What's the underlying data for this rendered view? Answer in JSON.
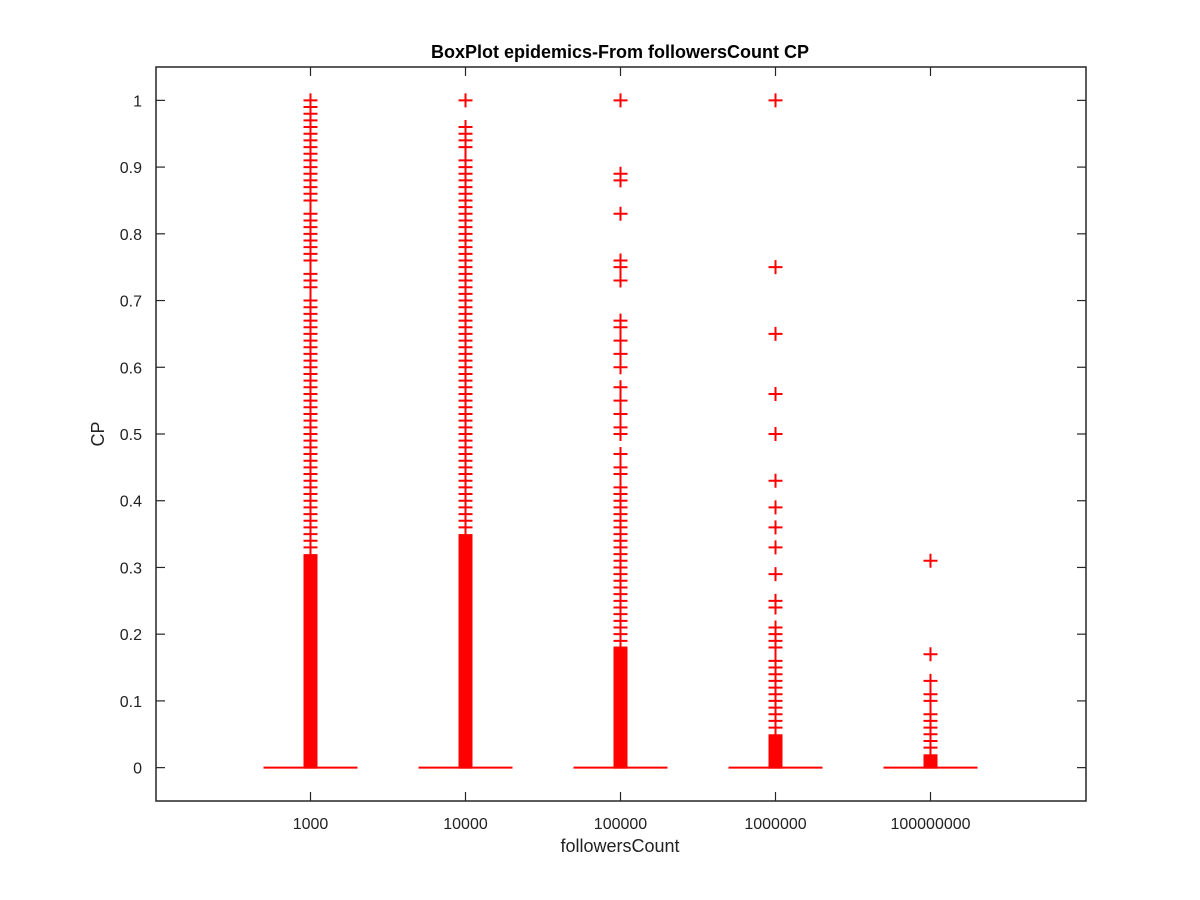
{
  "chart_data": {
    "type": "boxplot",
    "title": "BoxPlot epidemics-From followersCount CP",
    "xlabel": "followersCount",
    "ylabel": "CP",
    "ylim": [
      -0.05,
      1.05
    ],
    "yticks": [
      0,
      0.1,
      0.2,
      0.3,
      0.4,
      0.5,
      0.6,
      0.7,
      0.8,
      0.9,
      1
    ],
    "ytick_labels": [
      "0",
      "0.1",
      "0.2",
      "0.3",
      "0.4",
      "0.5",
      "0.6",
      "0.7",
      "0.8",
      "0.9",
      "1"
    ],
    "categories": [
      "1000",
      "10000",
      "100000",
      "1000000",
      "100000000"
    ],
    "colors": {
      "outlier": "#ff0000",
      "median": "#ff0000",
      "axis": "#262626"
    },
    "grid": false,
    "series": [
      {
        "category": "1000",
        "median": 0,
        "dense_outlier_range": [
          0,
          0.32
        ],
        "outliers": [
          0.33,
          0.34,
          0.35,
          0.36,
          0.37,
          0.38,
          0.39,
          0.4,
          0.41,
          0.42,
          0.43,
          0.44,
          0.45,
          0.46,
          0.47,
          0.48,
          0.49,
          0.5,
          0.51,
          0.52,
          0.53,
          0.54,
          0.55,
          0.56,
          0.57,
          0.58,
          0.59,
          0.6,
          0.61,
          0.62,
          0.63,
          0.64,
          0.65,
          0.66,
          0.67,
          0.68,
          0.69,
          0.7,
          0.72,
          0.73,
          0.74,
          0.76,
          0.77,
          0.78,
          0.79,
          0.8,
          0.81,
          0.82,
          0.83,
          0.85,
          0.86,
          0.87,
          0.88,
          0.89,
          0.9,
          0.91,
          0.92,
          0.93,
          0.94,
          0.95,
          0.96,
          0.97,
          0.98,
          0.99,
          1.0
        ]
      },
      {
        "category": "10000",
        "median": 0,
        "dense_outlier_range": [
          0,
          0.35
        ],
        "outliers": [
          0.36,
          0.37,
          0.38,
          0.39,
          0.4,
          0.41,
          0.42,
          0.43,
          0.44,
          0.45,
          0.46,
          0.47,
          0.48,
          0.49,
          0.5,
          0.51,
          0.52,
          0.53,
          0.54,
          0.55,
          0.56,
          0.57,
          0.58,
          0.59,
          0.6,
          0.61,
          0.62,
          0.63,
          0.64,
          0.65,
          0.66,
          0.67,
          0.68,
          0.69,
          0.7,
          0.71,
          0.72,
          0.73,
          0.74,
          0.75,
          0.76,
          0.77,
          0.78,
          0.79,
          0.8,
          0.81,
          0.82,
          0.83,
          0.84,
          0.85,
          0.86,
          0.87,
          0.88,
          0.89,
          0.9,
          0.91,
          0.93,
          0.94,
          0.95,
          0.96,
          1.0
        ]
      },
      {
        "category": "100000",
        "median": 0,
        "dense_outlier_range": [
          0,
          0.18
        ],
        "outliers": [
          0.19,
          0.2,
          0.21,
          0.22,
          0.23,
          0.24,
          0.25,
          0.26,
          0.27,
          0.28,
          0.29,
          0.3,
          0.31,
          0.32,
          0.33,
          0.34,
          0.35,
          0.36,
          0.37,
          0.38,
          0.39,
          0.4,
          0.41,
          0.42,
          0.44,
          0.45,
          0.47,
          0.5,
          0.51,
          0.53,
          0.55,
          0.57,
          0.6,
          0.62,
          0.64,
          0.66,
          0.67,
          0.73,
          0.75,
          0.76,
          0.83,
          0.88,
          0.89,
          1.0
        ]
      },
      {
        "category": "1000000",
        "median": 0,
        "dense_outlier_range": [
          0,
          0.05
        ],
        "outliers": [
          0.06,
          0.07,
          0.08,
          0.09,
          0.1,
          0.11,
          0.12,
          0.13,
          0.14,
          0.15,
          0.16,
          0.18,
          0.19,
          0.2,
          0.21,
          0.24,
          0.25,
          0.29,
          0.33,
          0.36,
          0.39,
          0.43,
          0.5,
          0.56,
          0.65,
          0.75,
          1.0
        ]
      },
      {
        "category": "100000000",
        "median": 0,
        "dense_outlier_range": [
          0,
          0.02
        ],
        "outliers": [
          0.03,
          0.04,
          0.05,
          0.06,
          0.07,
          0.08,
          0.1,
          0.11,
          0.13,
          0.17,
          0.31
        ]
      }
    ]
  }
}
